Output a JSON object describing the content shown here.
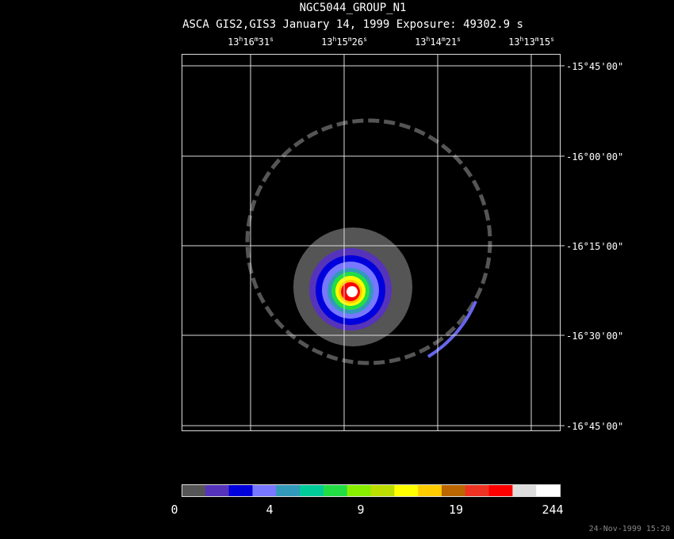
{
  "header": {
    "title": "NGC5044_GROUP_N1",
    "subtitle": "ASCA GIS2,GIS3 January 14, 1999 Exposure: 49302.9 s"
  },
  "ra_labels": [
    [
      "13",
      "h",
      "16",
      "m",
      "31",
      "s"
    ],
    [
      "13",
      "h",
      "15",
      "m",
      "26",
      "s"
    ],
    [
      "13",
      "h",
      "14",
      "m",
      "21",
      "s"
    ],
    [
      "13",
      "h",
      "13",
      "m",
      "15",
      "s"
    ]
  ],
  "dec_labels": [
    "-15°45'00\"",
    "-16°00'00\"",
    "-16°15'00\"",
    "-16°30'00\"",
    "-16°45'00\""
  ],
  "colorbar": {
    "colors": [
      "#555555",
      "#5533bb",
      "#0000dd",
      "#7777ff",
      "#3399bb",
      "#00cc99",
      "#22dd44",
      "#88ee00",
      "#bbdd00",
      "#ffff00",
      "#ffcc00",
      "#bb6600",
      "#ee3322",
      "#ff0000",
      "#dddddd",
      "#ffffff"
    ],
    "labels": [
      "0",
      "4",
      "9",
      "19",
      "244"
    ]
  },
  "footer": {
    "timestamp": "24-Nov-1999 15:20"
  }
}
